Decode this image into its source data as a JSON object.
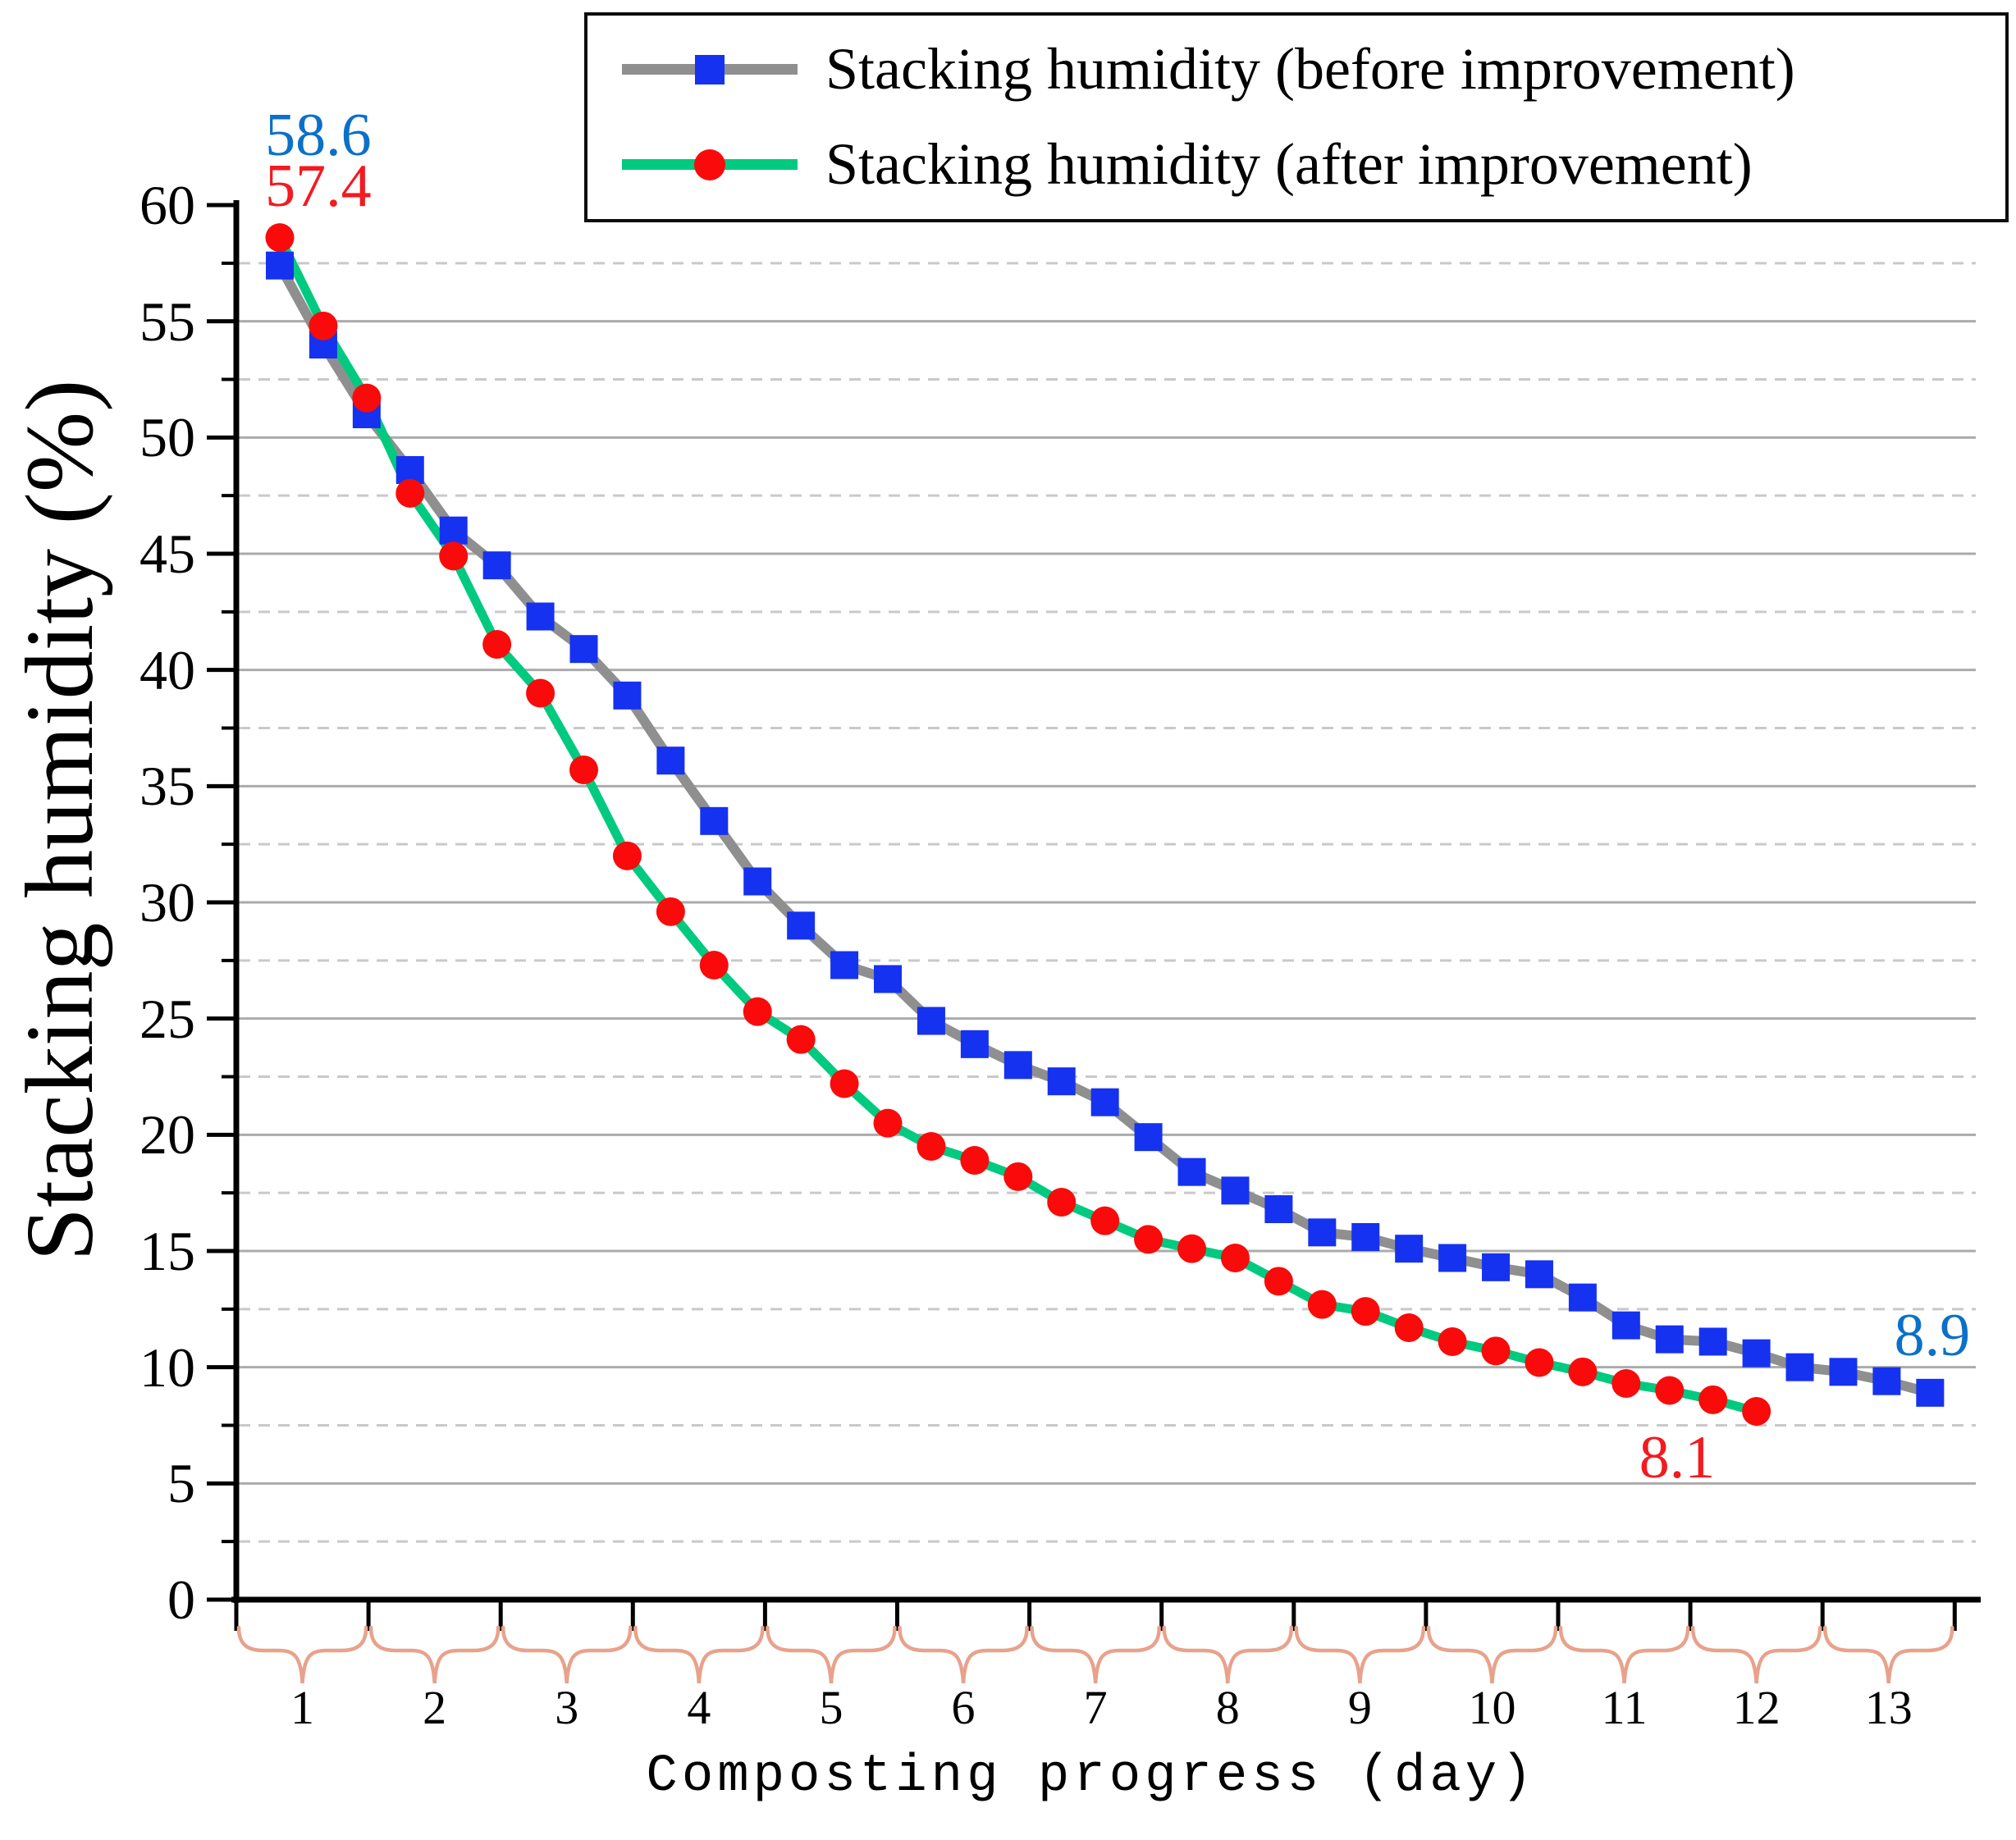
{
  "chart_data": {
    "type": "line",
    "title": "",
    "x_axis": {
      "title": "Composting progress (day)",
      "day_labels": [
        1,
        2,
        3,
        4,
        5,
        6,
        7,
        8,
        9,
        10,
        11,
        12,
        13
      ],
      "range_days": [
        0,
        13
      ],
      "samples_per_day": 3,
      "brace_style": "salmon curly under-braces grouping each day"
    },
    "y_axis": {
      "title": "Stacking humidity (%)",
      "ticks": [
        0,
        5,
        10,
        15,
        20,
        25,
        30,
        35,
        40,
        45,
        50,
        55,
        60
      ],
      "range": [
        0,
        60
      ],
      "minor_step": 2.5
    },
    "grid": {
      "major_step": 5,
      "major_style": "solid",
      "minor_step": 2.5,
      "minor_style": "dashed",
      "legend_position": "top-right"
    },
    "series": [
      {
        "name": "Stacking humidity (before improvement)",
        "marker": "square",
        "marker_color": "#1532F0",
        "line_color": "#8F8F8F",
        "x_days": [
          0.33,
          0.67,
          1,
          1.33,
          1.67,
          2,
          2.33,
          2.67,
          3,
          3.33,
          3.67,
          4,
          4.33,
          4.67,
          5,
          5.33,
          5.67,
          6,
          6.33,
          6.67,
          7,
          7.33,
          7.67,
          8,
          8.33,
          8.67,
          9,
          9.33,
          9.67,
          10,
          10.33,
          10.67,
          11,
          11.33,
          11.67,
          12,
          12.33,
          12.67,
          13
        ],
        "values": [
          57.4,
          54.0,
          51.0,
          48.6,
          46.0,
          44.5,
          42.3,
          40.9,
          38.9,
          36.1,
          33.5,
          30.9,
          29.0,
          27.3,
          26.7,
          24.9,
          23.9,
          23.0,
          22.3,
          21.4,
          19.9,
          18.4,
          17.6,
          16.8,
          15.8,
          15.6,
          15.1,
          14.7,
          14.3,
          14.0,
          13.0,
          11.8,
          11.2,
          11.1,
          10.6,
          10.0,
          9.8,
          9.4,
          8.9
        ]
      },
      {
        "name": "Stacking humidity (after improvement)",
        "marker": "circle",
        "marker_color": "#FA0A0A",
        "line_color": "#00CA80",
        "x_days": [
          0.33,
          0.67,
          1,
          1.33,
          1.67,
          2,
          2.33,
          2.67,
          3,
          3.33,
          3.67,
          4,
          4.33,
          4.67,
          5,
          5.33,
          5.67,
          6,
          6.33,
          6.67,
          7,
          7.33,
          7.67,
          8,
          8.33,
          8.67,
          9,
          9.33,
          9.67,
          10,
          10.33,
          10.67,
          11,
          11.33,
          11.67
        ],
        "values": [
          58.6,
          54.8,
          51.7,
          47.6,
          44.9,
          41.1,
          39.0,
          35.7,
          32.0,
          29.6,
          27.3,
          25.3,
          24.1,
          22.2,
          20.5,
          19.5,
          18.9,
          18.2,
          17.1,
          16.3,
          15.5,
          15.1,
          14.7,
          13.7,
          12.7,
          12.4,
          11.7,
          11.1,
          10.7,
          10.2,
          9.8,
          9.3,
          9.0,
          8.6,
          8.1
        ]
      }
    ],
    "annotations": [
      {
        "text": "58.6",
        "color": "#0B70C8",
        "x_day": 0.62,
        "y_value": 63.0
      },
      {
        "text": "57.4",
        "color": "#F31A20",
        "x_day": 0.62,
        "y_value": 60.8
      },
      {
        "text": "8.9",
        "color": "#0B70C8",
        "x_day": 12.83,
        "y_value": 11.35
      },
      {
        "text": "8.1",
        "color": "#F31A20",
        "x_day": 10.9,
        "y_value": 6.1
      }
    ],
    "colors": {
      "axis": "#000000",
      "grid_major": "#ABABAB",
      "grid_minor": "#C9C9C9",
      "brace": "#E8A28C",
      "background": "#FFFFFF"
    }
  }
}
